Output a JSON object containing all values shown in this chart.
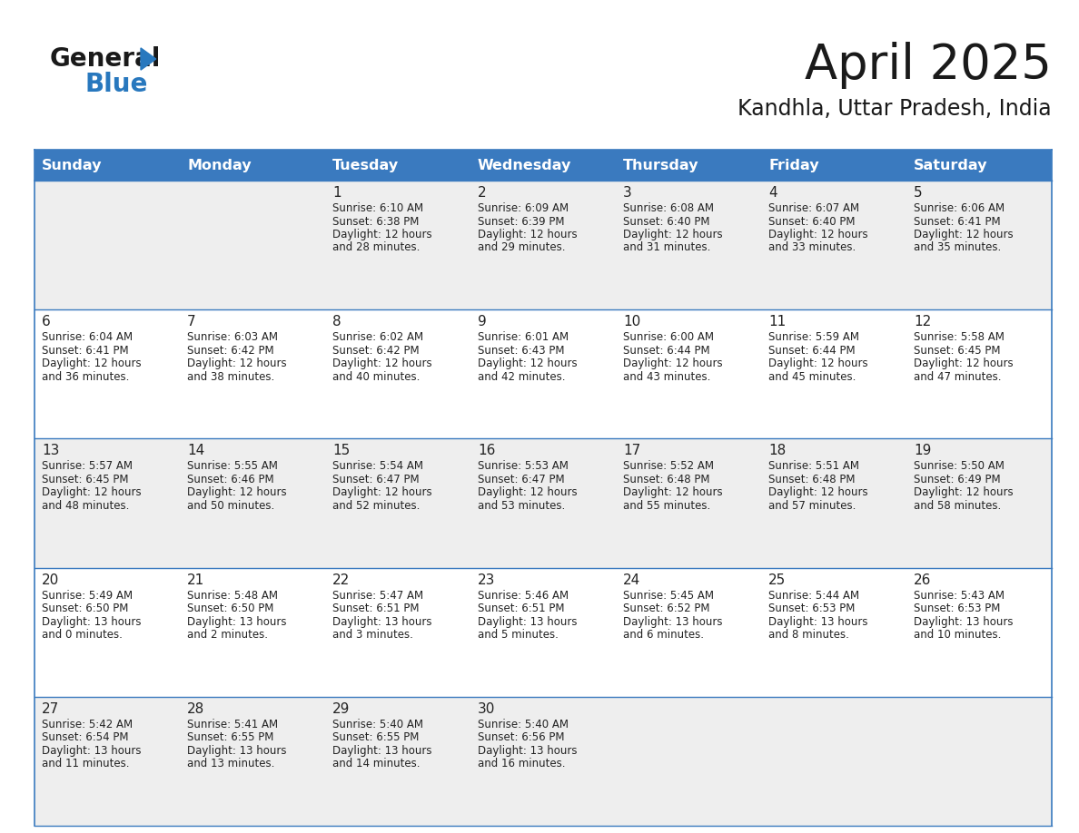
{
  "title": "April 2025",
  "subtitle": "Kandhla, Uttar Pradesh, India",
  "header_bg": "#3a7abf",
  "header_text": "#ffffff",
  "row_bg_light": "#eeeeee",
  "row_bg_white": "#ffffff",
  "cell_border": "#3a7abf",
  "day_headers": [
    "Sunday",
    "Monday",
    "Tuesday",
    "Wednesday",
    "Thursday",
    "Friday",
    "Saturday"
  ],
  "days": [
    {
      "day": 1,
      "col": 2,
      "row": 0,
      "sunrise": "6:10 AM",
      "sunset": "6:38 PM",
      "daylight": "12 hours\nand 28 minutes."
    },
    {
      "day": 2,
      "col": 3,
      "row": 0,
      "sunrise": "6:09 AM",
      "sunset": "6:39 PM",
      "daylight": "12 hours\nand 29 minutes."
    },
    {
      "day": 3,
      "col": 4,
      "row": 0,
      "sunrise": "6:08 AM",
      "sunset": "6:40 PM",
      "daylight": "12 hours\nand 31 minutes."
    },
    {
      "day": 4,
      "col": 5,
      "row": 0,
      "sunrise": "6:07 AM",
      "sunset": "6:40 PM",
      "daylight": "12 hours\nand 33 minutes."
    },
    {
      "day": 5,
      "col": 6,
      "row": 0,
      "sunrise": "6:06 AM",
      "sunset": "6:41 PM",
      "daylight": "12 hours\nand 35 minutes."
    },
    {
      "day": 6,
      "col": 0,
      "row": 1,
      "sunrise": "6:04 AM",
      "sunset": "6:41 PM",
      "daylight": "12 hours\nand 36 minutes."
    },
    {
      "day": 7,
      "col": 1,
      "row": 1,
      "sunrise": "6:03 AM",
      "sunset": "6:42 PM",
      "daylight": "12 hours\nand 38 minutes."
    },
    {
      "day": 8,
      "col": 2,
      "row": 1,
      "sunrise": "6:02 AM",
      "sunset": "6:42 PM",
      "daylight": "12 hours\nand 40 minutes."
    },
    {
      "day": 9,
      "col": 3,
      "row": 1,
      "sunrise": "6:01 AM",
      "sunset": "6:43 PM",
      "daylight": "12 hours\nand 42 minutes."
    },
    {
      "day": 10,
      "col": 4,
      "row": 1,
      "sunrise": "6:00 AM",
      "sunset": "6:44 PM",
      "daylight": "12 hours\nand 43 minutes."
    },
    {
      "day": 11,
      "col": 5,
      "row": 1,
      "sunrise": "5:59 AM",
      "sunset": "6:44 PM",
      "daylight": "12 hours\nand 45 minutes."
    },
    {
      "day": 12,
      "col": 6,
      "row": 1,
      "sunrise": "5:58 AM",
      "sunset": "6:45 PM",
      "daylight": "12 hours\nand 47 minutes."
    },
    {
      "day": 13,
      "col": 0,
      "row": 2,
      "sunrise": "5:57 AM",
      "sunset": "6:45 PM",
      "daylight": "12 hours\nand 48 minutes."
    },
    {
      "day": 14,
      "col": 1,
      "row": 2,
      "sunrise": "5:55 AM",
      "sunset": "6:46 PM",
      "daylight": "12 hours\nand 50 minutes."
    },
    {
      "day": 15,
      "col": 2,
      "row": 2,
      "sunrise": "5:54 AM",
      "sunset": "6:47 PM",
      "daylight": "12 hours\nand 52 minutes."
    },
    {
      "day": 16,
      "col": 3,
      "row": 2,
      "sunrise": "5:53 AM",
      "sunset": "6:47 PM",
      "daylight": "12 hours\nand 53 minutes."
    },
    {
      "day": 17,
      "col": 4,
      "row": 2,
      "sunrise": "5:52 AM",
      "sunset": "6:48 PM",
      "daylight": "12 hours\nand 55 minutes."
    },
    {
      "day": 18,
      "col": 5,
      "row": 2,
      "sunrise": "5:51 AM",
      "sunset": "6:48 PM",
      "daylight": "12 hours\nand 57 minutes."
    },
    {
      "day": 19,
      "col": 6,
      "row": 2,
      "sunrise": "5:50 AM",
      "sunset": "6:49 PM",
      "daylight": "12 hours\nand 58 minutes."
    },
    {
      "day": 20,
      "col": 0,
      "row": 3,
      "sunrise": "5:49 AM",
      "sunset": "6:50 PM",
      "daylight": "13 hours\nand 0 minutes."
    },
    {
      "day": 21,
      "col": 1,
      "row": 3,
      "sunrise": "5:48 AM",
      "sunset": "6:50 PM",
      "daylight": "13 hours\nand 2 minutes."
    },
    {
      "day": 22,
      "col": 2,
      "row": 3,
      "sunrise": "5:47 AM",
      "sunset": "6:51 PM",
      "daylight": "13 hours\nand 3 minutes."
    },
    {
      "day": 23,
      "col": 3,
      "row": 3,
      "sunrise": "5:46 AM",
      "sunset": "6:51 PM",
      "daylight": "13 hours\nand 5 minutes."
    },
    {
      "day": 24,
      "col": 4,
      "row": 3,
      "sunrise": "5:45 AM",
      "sunset": "6:52 PM",
      "daylight": "13 hours\nand 6 minutes."
    },
    {
      "day": 25,
      "col": 5,
      "row": 3,
      "sunrise": "5:44 AM",
      "sunset": "6:53 PM",
      "daylight": "13 hours\nand 8 minutes."
    },
    {
      "day": 26,
      "col": 6,
      "row": 3,
      "sunrise": "5:43 AM",
      "sunset": "6:53 PM",
      "daylight": "13 hours\nand 10 minutes."
    },
    {
      "day": 27,
      "col": 0,
      "row": 4,
      "sunrise": "5:42 AM",
      "sunset": "6:54 PM",
      "daylight": "13 hours\nand 11 minutes."
    },
    {
      "day": 28,
      "col": 1,
      "row": 4,
      "sunrise": "5:41 AM",
      "sunset": "6:55 PM",
      "daylight": "13 hours\nand 13 minutes."
    },
    {
      "day": 29,
      "col": 2,
      "row": 4,
      "sunrise": "5:40 AM",
      "sunset": "6:55 PM",
      "daylight": "13 hours\nand 14 minutes."
    },
    {
      "day": 30,
      "col": 3,
      "row": 4,
      "sunrise": "5:40 AM",
      "sunset": "6:56 PM",
      "daylight": "13 hours\nand 16 minutes."
    }
  ],
  "num_rows": 5,
  "num_cols": 7,
  "logo_color_general": "#1a1a1a",
  "logo_color_blue": "#2878be",
  "logo_triangle_color": "#2878be"
}
